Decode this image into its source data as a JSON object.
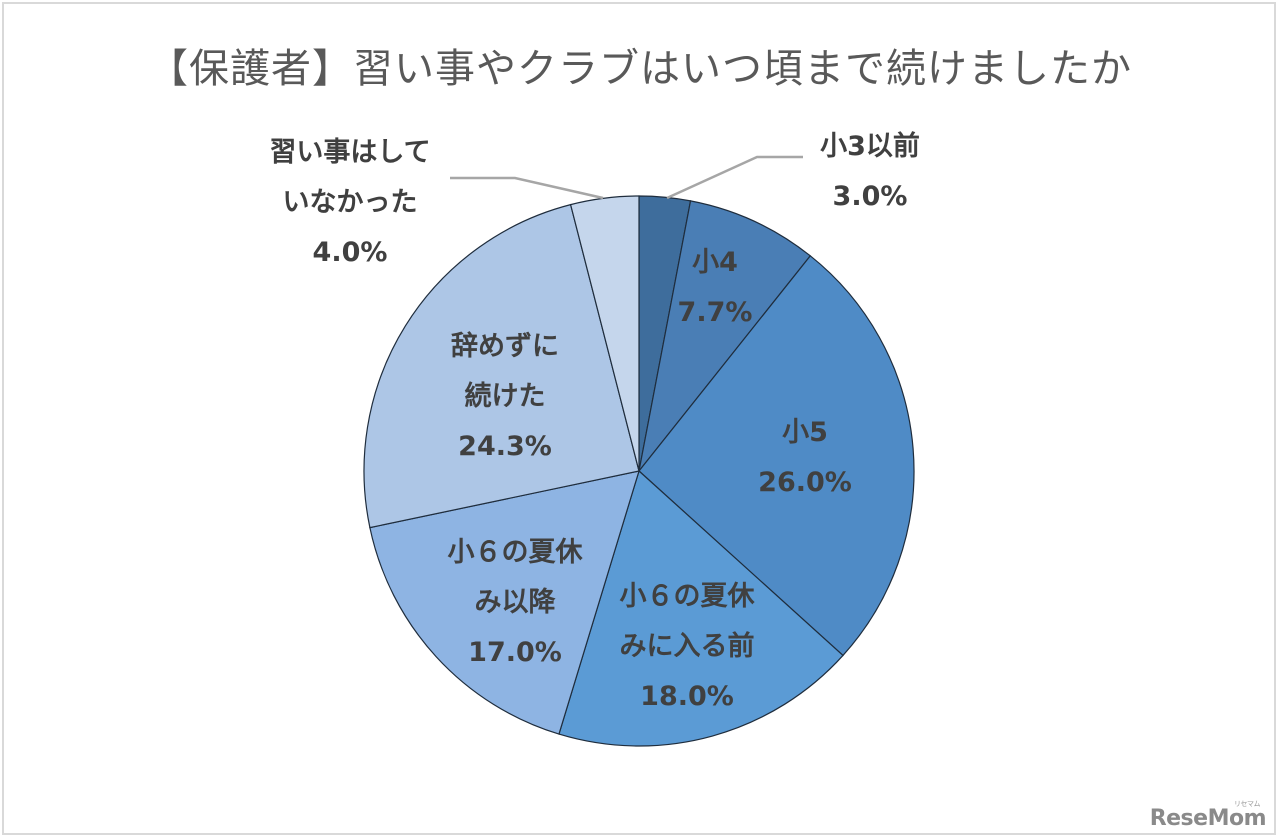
{
  "title": "【保護者】習い事やクラブはいつ頃まで続けましたか",
  "watermark": {
    "text": "ReseMom",
    "sub": "リセマム"
  },
  "chart_data": {
    "type": "pie",
    "title": "【保護者】習い事やクラブはいつ頃まで続けましたか",
    "start_angle": "12 o'clock, clockwise",
    "categories": [
      "小3以前",
      "小4",
      "小5",
      "小６の夏休みに入る前",
      "小６の夏休み以降",
      "辞めずに続けた",
      "習い事はしていなかった"
    ],
    "values": [
      3.0,
      7.7,
      26.0,
      18.0,
      17.0,
      24.3,
      4.0
    ],
    "unit": "%",
    "colors": [
      "#3e6d9c",
      "#4a7eb5",
      "#4f8bc6",
      "#5b9bd5",
      "#8eb4e3",
      "#adc6e6",
      "#c5d6ec"
    ],
    "legend": "none (data labels on slices)"
  },
  "labels": {
    "s0": {
      "lines": [
        "小3以前",
        "3.0%"
      ]
    },
    "s1": {
      "lines": [
        "小4",
        "7.7%"
      ]
    },
    "s2": {
      "lines": [
        "小5",
        "26.0%"
      ]
    },
    "s3": {
      "lines": [
        "小６の夏休",
        "みに入る前",
        "18.0%"
      ]
    },
    "s4": {
      "lines": [
        "小６の夏休",
        "み以降",
        "17.0%"
      ]
    },
    "s5": {
      "lines": [
        "辞めずに",
        "続けた",
        "24.3%"
      ]
    },
    "s6": {
      "lines": [
        "習い事はして",
        "いなかった",
        "4.0%"
      ]
    }
  }
}
